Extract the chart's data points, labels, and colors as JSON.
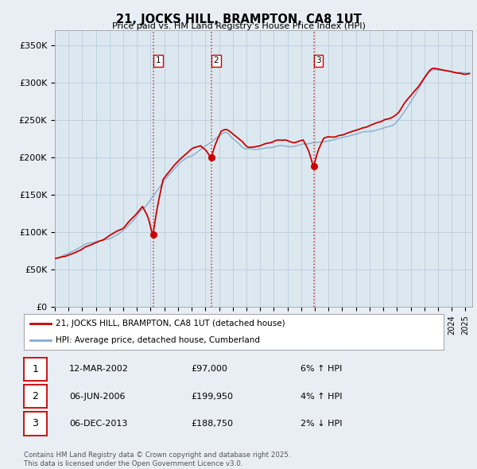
{
  "title": "21, JOCKS HILL, BRAMPTON, CA8 1UT",
  "subtitle": "Price paid vs. HM Land Registry's House Price Index (HPI)",
  "ylabel_ticks": [
    "£0",
    "£50K",
    "£100K",
    "£150K",
    "£200K",
    "£250K",
    "£300K",
    "£350K"
  ],
  "ytick_values": [
    0,
    50000,
    100000,
    150000,
    200000,
    250000,
    300000,
    350000
  ],
  "ylim": [
    0,
    370000
  ],
  "xlim_start": 1995.0,
  "xlim_end": 2025.5,
  "sale_dates": [
    2002.19,
    2006.43,
    2013.92
  ],
  "sale_prices": [
    97000,
    199950,
    188750
  ],
  "sale_labels": [
    "1",
    "2",
    "3"
  ],
  "vline_color": "#cc0000",
  "red_line_color": "#cc0000",
  "blue_line_color": "#88aacc",
  "background_color": "#e8eef4",
  "plot_bg_color": "#dce8f0",
  "grid_color": "#bbccdd",
  "legend_entries": [
    "21, JOCKS HILL, BRAMPTON, CA8 1UT (detached house)",
    "HPI: Average price, detached house, Cumberland"
  ],
  "table_rows": [
    {
      "num": "1",
      "date": "12-MAR-2002",
      "price": "£97,000",
      "pct": "6% ↑ HPI"
    },
    {
      "num": "2",
      "date": "06-JUN-2006",
      "price": "£199,950",
      "pct": "4% ↑ HPI"
    },
    {
      "num": "3",
      "date": "06-DEC-2013",
      "price": "£188,750",
      "pct": "2% ↓ HPI"
    }
  ],
  "footer": "Contains HM Land Registry data © Crown copyright and database right 2025.\nThis data is licensed under the Open Government Licence v3.0."
}
